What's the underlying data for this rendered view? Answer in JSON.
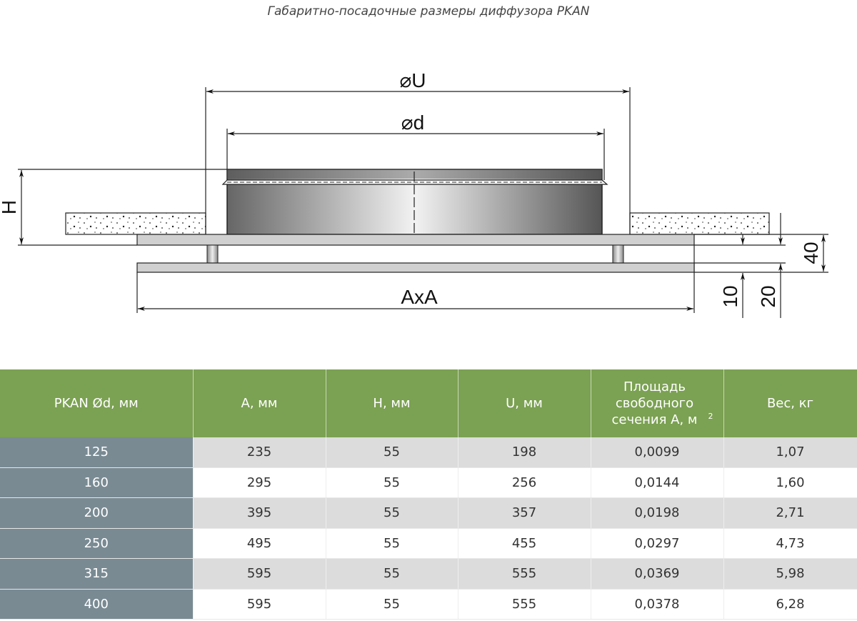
{
  "title": "Габаритно-посадочные размеры диффузора PKAN",
  "drawing": {
    "labels": {
      "U": "⌀U",
      "d": "⌀d",
      "H": "H",
      "AxA": "AxA",
      "dim10": "10",
      "dim20": "20",
      "dim40": "40"
    }
  },
  "table": {
    "headers": [
      "PKAN Ød, мм",
      "A, мм",
      "H, мм",
      "U, мм",
      "Площадь свободного сечения A, м",
      "Вес, кг"
    ],
    "header_sup": "2",
    "rows": [
      [
        "125",
        "235",
        "55",
        "198",
        "0,0099",
        "1,07"
      ],
      [
        "160",
        "295",
        "55",
        "256",
        "0,0144",
        "1,60"
      ],
      [
        "200",
        "395",
        "55",
        "357",
        "0,0198",
        "2,71"
      ],
      [
        "250",
        "495",
        "55",
        "455",
        "0,0297",
        "4,73"
      ],
      [
        "315",
        "595",
        "55",
        "555",
        "0,0369",
        "5,98"
      ],
      [
        "400",
        "595",
        "55",
        "555",
        "0,0378",
        "6,28"
      ]
    ]
  },
  "colors": {
    "header": "#7ba152",
    "first_column": "#798a93",
    "row_alt": "#dcdcdc"
  }
}
